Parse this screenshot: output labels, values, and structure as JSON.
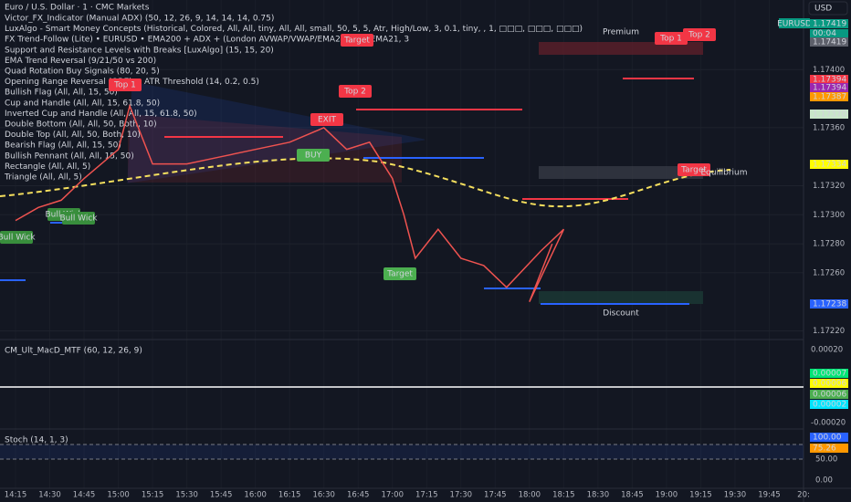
{
  "header": {
    "title": "Euro / U.S. Dollar · 1 · CMC Markets",
    "symbol": "EURUSD",
    "currency": "USD",
    "countdown": "00:04"
  },
  "indicators": [
    "Victor_FX_Indicator (Manual ADX) (50, 12, 26, 9, 14, 14, 14, 0.75)",
    "LuxAlgo - Smart Money Concepts (Historical, Colored, All, All, tiny, All, All, small, 50, 5, 5, Atr, High/Low, 3, 0.1, tiny, , 1, □□□, □□□, □□□)",
    "FX Trend-Follow (Lite) • EURUSD • EMA200 + ADX + (London AVWAP/VWAP/EMA21) (20, EMA21, 3",
    "Support and Resistance Levels with Breaks [LuxAlgo] (15, 15, 20)",
    "EMA Trend Reversal (9/21/50 vs 200)",
    "Quad Rotation Buy Signals (80, 20, 5)",
    "Opening Range Reversal (ORE) + ATR Threshold (14, 0.2, 0.5)",
    "Bullish Flag (All, All, 15, 50)",
    "Cup and Handle (All, All, 15, 61.8, 50)",
    "Inverted Cup and Handle (All, All, 15, 61.8, 50)",
    "Double Bottom (All, All, 50, Both, 10)",
    "Double Top (All, All, 50, Both, 10)",
    "Bearish Flag (All, All, 15, 50)",
    "Bullish Pennant (All, All, 15, 50)",
    "Rectangle (All, All, 5)",
    "Triangle (All, All, 5)"
  ],
  "chart_data": {
    "type": "line",
    "x": [
      855,
      865,
      875,
      885,
      900,
      905,
      915,
      930,
      945,
      960,
      975,
      990,
      1000,
      1010,
      1020,
      1025,
      1030,
      1040,
      1050,
      1060,
      1070,
      1085,
      1095,
      1080,
      1090
    ],
    "series": [
      {
        "color": "#ef5350",
        "values": [
          1.17296,
          1.17305,
          1.1731,
          1.17325,
          1.17345,
          1.17375,
          1.17335,
          1.17335,
          1.1734,
          1.17345,
          1.1735,
          1.1736,
          1.17345,
          1.1735,
          1.17325,
          1.173,
          1.1727,
          1.1729,
          1.1727,
          1.17265,
          1.1725,
          1.17275,
          1.1729,
          1.1724,
          1.1728
        ]
      }
    ],
    "xlim": [
      848.2,
      1200
    ],
    "ylim": [
      1.17214,
      1.17448
    ],
    "xticks": [
      {
        "value": 855,
        "label": "14:15"
      },
      {
        "value": 870,
        "label": "14:30"
      },
      {
        "value": 885,
        "label": "14:45"
      },
      {
        "value": 900,
        "label": "15:00"
      },
      {
        "value": 915,
        "label": "15:15"
      },
      {
        "value": 930,
        "label": "15:30"
      },
      {
        "value": 945,
        "label": "15:45"
      },
      {
        "value": 960,
        "label": "16:00"
      },
      {
        "value": 975,
        "label": "16:15"
      },
      {
        "value": 990,
        "label": "16:30"
      },
      {
        "value": 1005,
        "label": "16:45"
      },
      {
        "value": 1020,
        "label": "17:00"
      },
      {
        "value": 1035,
        "label": "17:15"
      },
      {
        "value": 1050,
        "label": "17:30"
      },
      {
        "value": 1065,
        "label": "17:45"
      },
      {
        "value": 1080,
        "label": "18:00"
      },
      {
        "value": 1095,
        "label": "18:15"
      },
      {
        "value": 1110,
        "label": "18:30"
      },
      {
        "value": 1125,
        "label": "18:45"
      },
      {
        "value": 1140,
        "label": "19:00"
      },
      {
        "value": 1155,
        "label": "19:15"
      },
      {
        "value": 1170,
        "label": "19:30"
      },
      {
        "value": 1185,
        "label": "19:45"
      },
      {
        "value": 1200,
        "label": "20:"
      }
    ],
    "yticks": [
      {
        "value": 1.174,
        "label": "1.17400"
      },
      {
        "value": 1.1736,
        "label": "1.17360"
      },
      {
        "value": 1.1732,
        "label": "1.17320"
      },
      {
        "value": 1.173,
        "label": "1.17300"
      },
      {
        "value": 1.1728,
        "label": "1.17280"
      },
      {
        "value": 1.1726,
        "label": "1.17260"
      },
      {
        "value": 1.1722,
        "label": "1.17220"
      }
    ]
  },
  "price_tags": [
    "1.17419",
    "1.17419",
    "1.17394",
    "1.17394",
    "1.17387",
    "1.17370",
    "1.17334",
    "1.17238"
  ],
  "annotations": [
    "Target",
    "Top 1",
    "Top 2",
    "EXIT",
    "BUY",
    "Target",
    "Target",
    "Top 1",
    "Top 2",
    "Bull Wick",
    "Bull Wick",
    "Bull Wick",
    "Premium",
    "Equilibrium",
    "Discount"
  ],
  "macd": {
    "label": "CM_Ult_MacD_MTF (60, 12, 26, 9)",
    "axis": [
      "0.00020",
      "-0.00020"
    ],
    "tags": [
      "0.00007",
      "0.00006",
      "0.00006",
      "0.00002"
    ]
  },
  "stoch": {
    "label": "Stoch (14, 1, 3)",
    "axis": [
      "50.00",
      "0.00"
    ],
    "tags": [
      "100.00",
      "75.26"
    ]
  }
}
